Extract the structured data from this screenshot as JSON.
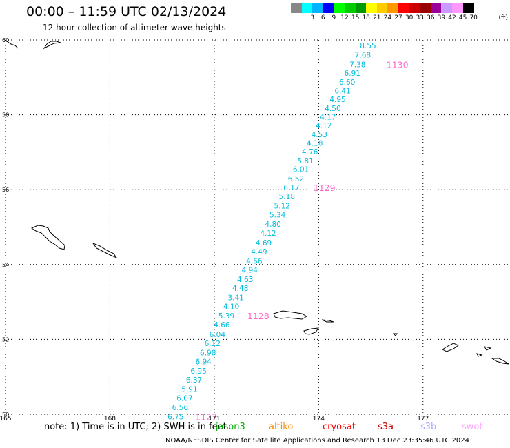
{
  "header": {
    "title": "00:00 – 11:59 UTC 02/13/2024",
    "subtitle": "12 hour collection of altimeter wave heights"
  },
  "legend": {
    "unit": "(ft)",
    "bins": [
      {
        "label": "",
        "color": "#888888"
      },
      {
        "label": "3",
        "color": "#00ffff"
      },
      {
        "label": "6",
        "color": "#00b4ff"
      },
      {
        "label": "9",
        "color": "#0000ff"
      },
      {
        "label": "12",
        "color": "#00ff00"
      },
      {
        "label": "15",
        "color": "#00cc00"
      },
      {
        "label": "18",
        "color": "#009900"
      },
      {
        "label": "21",
        "color": "#ffff00"
      },
      {
        "label": "24",
        "color": "#ffcc00"
      },
      {
        "label": "27",
        "color": "#ff9900"
      },
      {
        "label": "30",
        "color": "#ff0000"
      },
      {
        "label": "33",
        "color": "#cc0000"
      },
      {
        "label": "36",
        "color": "#990000"
      },
      {
        "label": "39",
        "color": "#990099"
      },
      {
        "label": "42",
        "color": "#cc99ff"
      },
      {
        "label": "45",
        "color": "#ff99ff"
      },
      {
        "label": "70",
        "color": "#000000"
      }
    ]
  },
  "map": {
    "lon_range": [
      165,
      179.5
    ],
    "lat_range": [
      50,
      60
    ],
    "lon_ticks": [
      "165",
      "168",
      "171",
      "174",
      "177"
    ],
    "lat_ticks": [
      "60",
      "58",
      "56",
      "54",
      "52",
      "50"
    ],
    "grid": "dotted"
  },
  "chart_data": {
    "type": "scatter",
    "title": "00:00 – 11:59 UTC 02/13/2024",
    "subtitle": "12 hour collection of altimeter wave heights",
    "xlabel": "",
    "ylabel": "",
    "xlim": [
      165,
      179.5
    ],
    "ylim": [
      50,
      60
    ],
    "units": "ft",
    "track_color": "#00bcdc",
    "time_color": "#ff66cc",
    "points": [
      {
        "lon": 175.65,
        "lat": 59.85,
        "swh": "8.55"
      },
      {
        "lon": 175.5,
        "lat": 59.6,
        "swh": "7.68"
      },
      {
        "lon": 175.35,
        "lat": 59.35,
        "swh": "7.38"
      },
      {
        "lon": 175.2,
        "lat": 59.12,
        "swh": "6.91"
      },
      {
        "lon": 175.05,
        "lat": 58.88,
        "swh": "6.60"
      },
      {
        "lon": 174.92,
        "lat": 58.65,
        "swh": "6.41"
      },
      {
        "lon": 174.78,
        "lat": 58.42,
        "swh": "4.95"
      },
      {
        "lon": 174.64,
        "lat": 58.18,
        "swh": "4.50"
      },
      {
        "lon": 174.5,
        "lat": 57.95,
        "swh": "4.17"
      },
      {
        "lon": 174.38,
        "lat": 57.72,
        "swh": "4.12"
      },
      {
        "lon": 174.25,
        "lat": 57.48,
        "swh": "4.53"
      },
      {
        "lon": 174.12,
        "lat": 57.25,
        "swh": "4.18"
      },
      {
        "lon": 173.98,
        "lat": 57.02,
        "swh": "4.76"
      },
      {
        "lon": 173.85,
        "lat": 56.78,
        "swh": "5.81"
      },
      {
        "lon": 173.72,
        "lat": 56.55,
        "swh": "6.01"
      },
      {
        "lon": 173.58,
        "lat": 56.3,
        "swh": "6.52"
      },
      {
        "lon": 173.45,
        "lat": 56.06,
        "swh": "6.17"
      },
      {
        "lon": 173.32,
        "lat": 55.82,
        "swh": "5.18"
      },
      {
        "lon": 173.18,
        "lat": 55.57,
        "swh": "5.12"
      },
      {
        "lon": 173.05,
        "lat": 55.33,
        "swh": "5.34"
      },
      {
        "lon": 172.92,
        "lat": 55.08,
        "swh": "4.80"
      },
      {
        "lon": 172.78,
        "lat": 54.84,
        "swh": "4.12"
      },
      {
        "lon": 172.65,
        "lat": 54.59,
        "swh": "4.69"
      },
      {
        "lon": 172.52,
        "lat": 54.35,
        "swh": "4.49"
      },
      {
        "lon": 172.38,
        "lat": 54.1,
        "swh": "4.66"
      },
      {
        "lon": 172.25,
        "lat": 53.86,
        "swh": "4.94"
      },
      {
        "lon": 172.12,
        "lat": 53.61,
        "swh": "4.63"
      },
      {
        "lon": 171.98,
        "lat": 53.37,
        "swh": "4.48"
      },
      {
        "lon": 171.85,
        "lat": 53.12,
        "swh": "3.41"
      },
      {
        "lon": 171.72,
        "lat": 52.88,
        "swh": "4.10"
      },
      {
        "lon": 171.58,
        "lat": 52.63,
        "swh": "5.39"
      },
      {
        "lon": 171.45,
        "lat": 52.39,
        "swh": "4.66"
      },
      {
        "lon": 171.32,
        "lat": 52.14,
        "swh": "6.04"
      },
      {
        "lon": 171.18,
        "lat": 51.9,
        "swh": "6.12"
      },
      {
        "lon": 171.05,
        "lat": 51.65,
        "swh": "6.98"
      },
      {
        "lon": 170.92,
        "lat": 51.41,
        "swh": "6.94"
      },
      {
        "lon": 170.78,
        "lat": 51.16,
        "swh": "6.95"
      },
      {
        "lon": 170.65,
        "lat": 50.92,
        "swh": "6.37"
      },
      {
        "lon": 170.52,
        "lat": 50.67,
        "swh": "5.91"
      },
      {
        "lon": 170.38,
        "lat": 50.43,
        "swh": "6.07"
      },
      {
        "lon": 170.25,
        "lat": 50.18,
        "swh": "6.56"
      },
      {
        "lon": 170.12,
        "lat": 49.94,
        "swh": "6.75"
      }
    ],
    "time_labels": [
      {
        "lon": 175.95,
        "lat": 59.35,
        "label": "1130"
      },
      {
        "lon": 173.85,
        "lat": 56.06,
        "label": "1129"
      },
      {
        "lon": 171.95,
        "lat": 52.63,
        "label": "1128"
      },
      {
        "lon": 170.45,
        "lat": 49.94,
        "label": "1127"
      }
    ]
  },
  "footer": {
    "note": "note: 1) Time is in UTC; 2) SWH is in feet",
    "satellites": [
      {
        "label": "jason3",
        "color": "#00aa00"
      },
      {
        "label": "altiko",
        "color": "#ff8c00"
      },
      {
        "label": "cryosat",
        "color": "#ff0000"
      },
      {
        "label": "s3a",
        "color": "#cc0000"
      },
      {
        "label": "s3b",
        "color": "#aaaaff"
      },
      {
        "label": "swot",
        "color": "#ff99ff"
      }
    ],
    "credit": "NOAA/NESDIS Center for Satellite Applications and Research    13 Dec 23:35:46 UTC 2024"
  }
}
